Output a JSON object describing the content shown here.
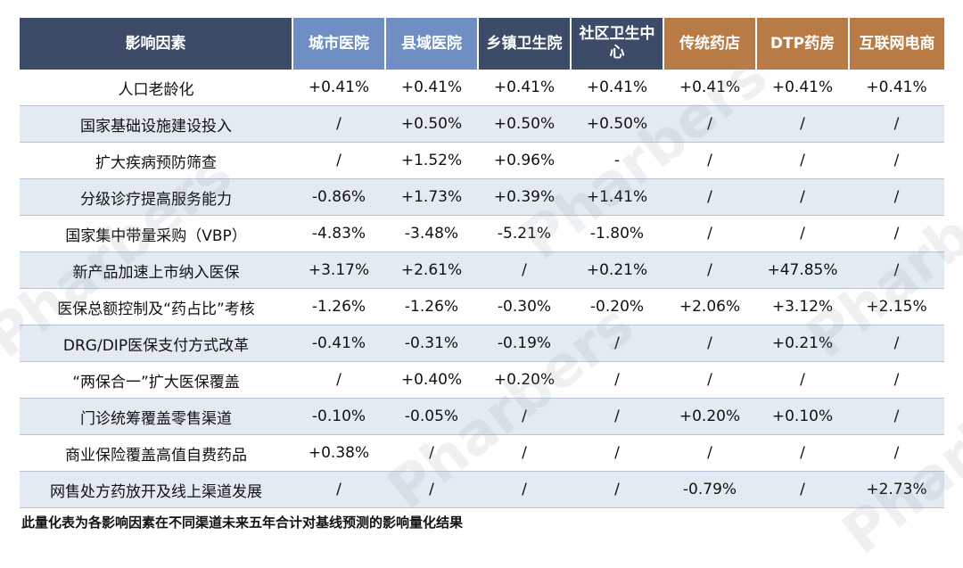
{
  "colors": {
    "header_factor": "#3c4b67",
    "header_hospital": "#6f8fc4",
    "header_primary": "#3c4b67",
    "header_retail": "#b87b45",
    "row_alt": "#e4eaf2"
  },
  "watermark": "Pharbers",
  "table": {
    "headers": [
      {
        "label": "影响因素",
        "group": "factor"
      },
      {
        "label": "城市医院",
        "group": "hospital"
      },
      {
        "label": "县域医院",
        "group": "hospital"
      },
      {
        "label": "乡镇卫生院",
        "group": "primary"
      },
      {
        "label": "社区卫生中心",
        "group": "primary"
      },
      {
        "label": "传统药店",
        "group": "retail"
      },
      {
        "label": "DTP药房",
        "group": "retail"
      },
      {
        "label": "互联网电商",
        "group": "retail"
      }
    ],
    "rows": [
      [
        "人口老龄化",
        "+0.41%",
        "+0.41%",
        "+0.41%",
        "+0.41%",
        "+0.41%",
        "+0.41%",
        "+0.41%"
      ],
      [
        "国家基础设施建设投入",
        "/",
        "+0.50%",
        "+0.50%",
        "+0.50%",
        "/",
        "/",
        "/"
      ],
      [
        "扩大疾病预防筛查",
        "/",
        "+1.52%",
        "+0.96%",
        "-",
        "/",
        "/",
        "/"
      ],
      [
        "分级诊疗提高服务能力",
        "-0.86%",
        "+1.73%",
        "+0.39%",
        "+1.41%",
        "/",
        "/",
        "/"
      ],
      [
        "国家集中带量采购（VBP）",
        "-4.83%",
        "-3.48%",
        "-5.21%",
        "-1.80%",
        "/",
        "/",
        "/"
      ],
      [
        "新产品加速上市纳入医保",
        "+3.17%",
        "+2.61%",
        "/",
        "+0.21%",
        "/",
        "+47.85%",
        "/"
      ],
      [
        "医保总额控制及“药占比”考核",
        "-1.26%",
        "-1.26%",
        "-0.30%",
        "-0.20%",
        "+2.06%",
        "+3.12%",
        "+2.15%"
      ],
      [
        "DRG/DIP医保支付方式改革",
        "-0.41%",
        "-0.31%",
        "-0.19%",
        "/",
        "/",
        "+0.21%",
        "/"
      ],
      [
        "“两保合一”扩大医保覆盖",
        "/",
        "+0.40%",
        "+0.20%",
        "/",
        "/",
        "/",
        "/"
      ],
      [
        "门诊统筹覆盖零售渠道",
        "-0.10%",
        "-0.05%",
        "/",
        "/",
        "+0.20%",
        "+0.10%",
        "/"
      ],
      [
        "商业保险覆盖高值自费药品",
        "+0.38%",
        "/",
        "/",
        "/",
        "/",
        "/",
        "/"
      ],
      [
        "网售处方药放开及线上渠道发展",
        "/",
        "/",
        "/",
        "/",
        "-0.79%",
        "/",
        "+2.73%"
      ]
    ]
  },
  "footnote": "此量化表为各影响因素在不同渠道未来五年合计对基线预测的影响量化结果"
}
